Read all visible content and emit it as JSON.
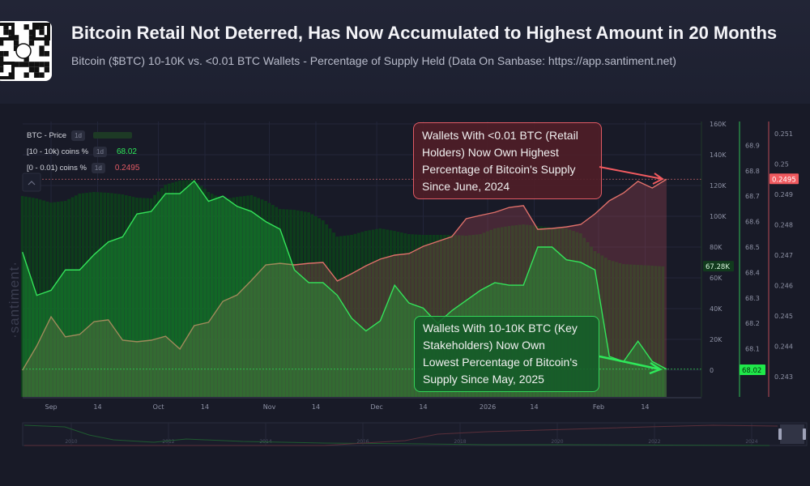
{
  "header": {
    "title": "Bitcoin Retail Not Deterred, Has Now Accumulated to Highest Amount in 20 Months",
    "subtitle": "Bitcoin ($BTC) 10-10K vs. <0.01 BTC Wallets - Percentage of Supply Held (Data On Sanbase: https://app.santiment.net)",
    "qr_icon": "qr-code-icon"
  },
  "watermark": "·santiment·",
  "legend": [
    {
      "label": "BTC - Price",
      "interval": "1d",
      "value": ""
    },
    {
      "label": "[10 - 10k) coins %",
      "interval": "1d",
      "value": "68.02"
    },
    {
      "label": "[0 - 0.01) coins %",
      "interval": "1d",
      "value": "0.2495"
    }
  ],
  "annotations": {
    "retail": [
      "Wallets With <0.01 BTC (Retail",
      "Holders) Now Own Highest",
      "Percentage of Bitcoin's Supply",
      "Since June, 2024"
    ],
    "stakeholders": [
      "Wallets With 10-10K BTC (Key",
      "Stakeholders) Now Own",
      "Lowest Percentage of Bitcoin's",
      "Supply Since May, 2025"
    ]
  },
  "colors": {
    "price": "#0f4a1f",
    "stakeholders": "#34e35a",
    "retail": "#e0706a",
    "retail_badge": "#f05a5f",
    "stakeholders_badge": "#1fe84a"
  },
  "chart_data": {
    "type": "line",
    "x": [
      "2025-08-24",
      "2025-08-28",
      "2025-09-01",
      "2025-09-05",
      "2025-09-09",
      "2025-09-13",
      "2025-09-17",
      "2025-09-21",
      "2025-09-25",
      "2025-09-29",
      "2025-10-03",
      "2025-10-07",
      "2025-10-11",
      "2025-10-15",
      "2025-10-19",
      "2025-10-23",
      "2025-10-27",
      "2025-10-31",
      "2025-11-04",
      "2025-11-08",
      "2025-11-12",
      "2025-11-16",
      "2025-11-20",
      "2025-11-24",
      "2025-11-28",
      "2025-12-02",
      "2025-12-06",
      "2025-12-10",
      "2025-12-14",
      "2025-12-18",
      "2025-12-22",
      "2025-12-26",
      "2025-12-30",
      "2026-01-03",
      "2026-01-07",
      "2026-01-11",
      "2026-01-15",
      "2026-01-19",
      "2026-01-23",
      "2026-01-27",
      "2026-01-31",
      "2026-02-04",
      "2026-02-08",
      "2026-02-12",
      "2026-02-16",
      "2026-02-20"
    ],
    "series": [
      {
        "name": "BTC - Price",
        "type": "bar",
        "axis": "price",
        "values": [
          113200,
          111600,
          108900,
          110000,
          114700,
          115800,
          115300,
          114200,
          112100,
          111600,
          120500,
          123200,
          123700,
          115800,
          111100,
          112600,
          113700,
          110000,
          104700,
          104200,
          102600,
          97400,
          86800,
          87900,
          90500,
          92100,
          90500,
          88400,
          87900,
          87900,
          87900,
          87400,
          88400,
          92100,
          93700,
          94700,
          93700,
          92600,
          92100,
          88900,
          77400,
          71600,
          68900,
          68400,
          67900,
          67280
        ]
      },
      {
        "name": "[10 - 10k) coins %",
        "type": "line",
        "axis": "stakeholders",
        "values": [
          68.48,
          68.31,
          68.33,
          68.41,
          68.41,
          68.47,
          68.52,
          68.54,
          68.63,
          68.64,
          68.71,
          68.71,
          68.76,
          68.68,
          68.7,
          68.66,
          68.64,
          68.6,
          68.57,
          68.41,
          68.36,
          68.36,
          68.31,
          68.22,
          68.17,
          68.21,
          68.35,
          68.28,
          68.26,
          68.2,
          68.25,
          68.29,
          68.33,
          68.36,
          68.35,
          68.35,
          68.5,
          68.5,
          68.45,
          68.44,
          68.41,
          68.07,
          68.05,
          68.13,
          68.05,
          68.02
        ]
      },
      {
        "name": "[0 - 0.01) coins %",
        "type": "line",
        "axis": "retail",
        "values": [
          0.24321,
          0.24401,
          0.24497,
          0.24431,
          0.24439,
          0.24481,
          0.24487,
          0.2442,
          0.24415,
          0.2442,
          0.24433,
          0.24391,
          0.24468,
          0.24479,
          0.24548,
          0.24569,
          0.24617,
          0.24668,
          0.24673,
          0.24668,
          0.24673,
          0.24676,
          0.24615,
          0.24639,
          0.24665,
          0.24687,
          0.247,
          0.24705,
          0.24729,
          0.24745,
          0.24761,
          0.2482,
          0.24831,
          0.24841,
          0.24857,
          0.24863,
          0.24785,
          0.24788,
          0.24793,
          0.24801,
          0.24836,
          0.24879,
          0.24905,
          0.24943,
          0.24921,
          0.2495
        ]
      }
    ],
    "x_ticks": [
      {
        "date": "2025-09-01",
        "label": "Sep"
      },
      {
        "date": "2025-09-14",
        "label": "14"
      },
      {
        "date": "2025-10-01",
        "label": "Oct"
      },
      {
        "date": "2025-10-14",
        "label": "14"
      },
      {
        "date": "2025-11-01",
        "label": "Nov"
      },
      {
        "date": "2025-11-14",
        "label": "14"
      },
      {
        "date": "2025-12-01",
        "label": "Dec"
      },
      {
        "date": "2025-12-14",
        "label": "14"
      },
      {
        "date": "2026-01-01",
        "label": "2026"
      },
      {
        "date": "2026-01-14",
        "label": "14"
      },
      {
        "date": "2026-02-01",
        "label": "Feb"
      },
      {
        "date": "2026-02-14",
        "label": "14"
      }
    ],
    "axes": {
      "price": {
        "range": [
          0,
          160000
        ],
        "ticks": [
          "0",
          "20K",
          "40K",
          "60K",
          "80K",
          "100K",
          "120K",
          "140K",
          "160K"
        ],
        "tick_values": [
          0,
          20000,
          40000,
          60000,
          80000,
          100000,
          120000,
          140000,
          160000
        ],
        "last_label": "67.28K",
        "last_value": 67280
      },
      "stakeholders": {
        "range": [
          68.0,
          68.9
        ],
        "ticks": [
          "68.1",
          "68.2",
          "68.3",
          "68.4",
          "68.5",
          "68.6",
          "68.7",
          "68.8",
          "68.9"
        ],
        "tick_values": [
          68.1,
          68.2,
          68.3,
          68.4,
          68.5,
          68.6,
          68.7,
          68.8,
          68.9
        ],
        "last_label": "68.02",
        "last_value": 68.02
      },
      "retail": {
        "range": [
          0.243,
          0.251
        ],
        "ticks": [
          "0.243",
          "0.244",
          "0.245",
          "0.246",
          "0.247",
          "0.248",
          "0.249",
          "0.25",
          "0.251"
        ],
        "tick_values": [
          0.243,
          0.244,
          0.245,
          0.246,
          0.247,
          0.248,
          0.249,
          0.25,
          0.251
        ],
        "last_label": "0.2495",
        "last_value": 0.2495
      }
    },
    "grid": true,
    "legend": "top-left",
    "navigator_ticks": [
      "2010",
      "2012",
      "2014",
      "2016",
      "2018",
      "2020",
      "2022",
      "2024"
    ]
  }
}
